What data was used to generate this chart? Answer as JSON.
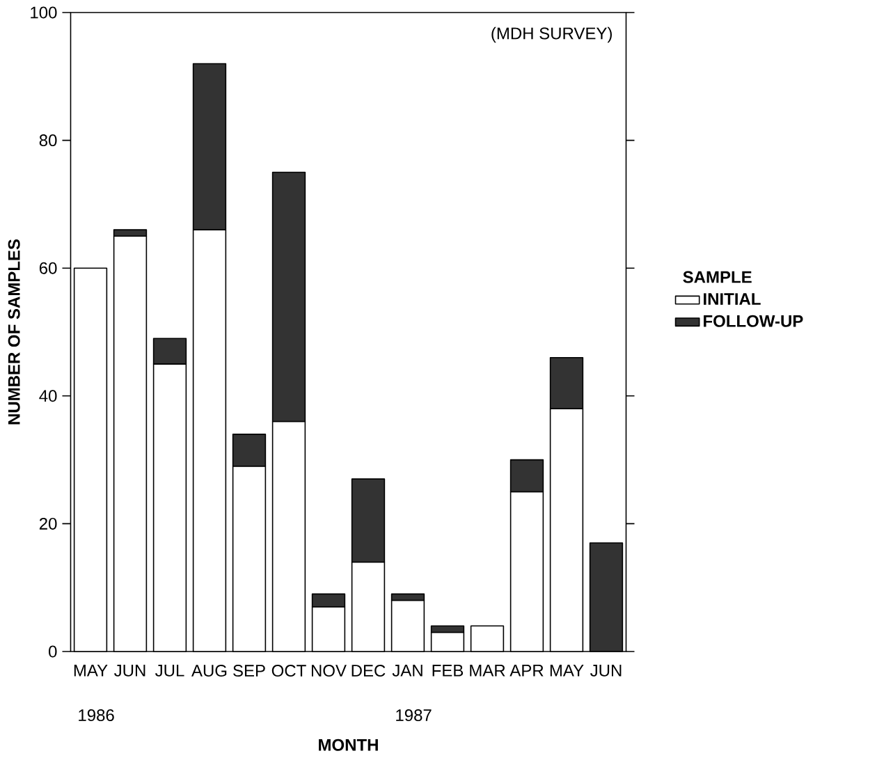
{
  "chart_data": {
    "type": "bar",
    "stacked": true,
    "categories": [
      "MAY",
      "JUN",
      "JUL",
      "AUG",
      "SEP",
      "OCT",
      "NOV",
      "DEC",
      "JAN",
      "FEB",
      "MAR",
      "APR",
      "MAY",
      "JUN"
    ],
    "xlabel": "MONTH",
    "ylabel": "NUMBER OF SAMPLES",
    "legend_title": "SAMPLE",
    "series": [
      {
        "name": "INITIAL",
        "color": "#ffffff",
        "values": [
          60,
          65,
          45,
          66,
          29,
          36,
          7,
          14,
          8,
          3,
          4,
          25,
          38,
          0
        ]
      },
      {
        "name": "FOLLOW-UP",
        "color": "#333333",
        "values": [
          0,
          1,
          4,
          26,
          5,
          39,
          2,
          13,
          1,
          1,
          0,
          5,
          8,
          17
        ]
      }
    ],
    "ylim": [
      0,
      100
    ],
    "yticks": [
      0,
      20,
      40,
      60,
      80,
      100
    ],
    "annotations": [
      "(MDH SURVEY)",
      "1986",
      "1987"
    ],
    "legend": "right",
    "grid": false
  }
}
